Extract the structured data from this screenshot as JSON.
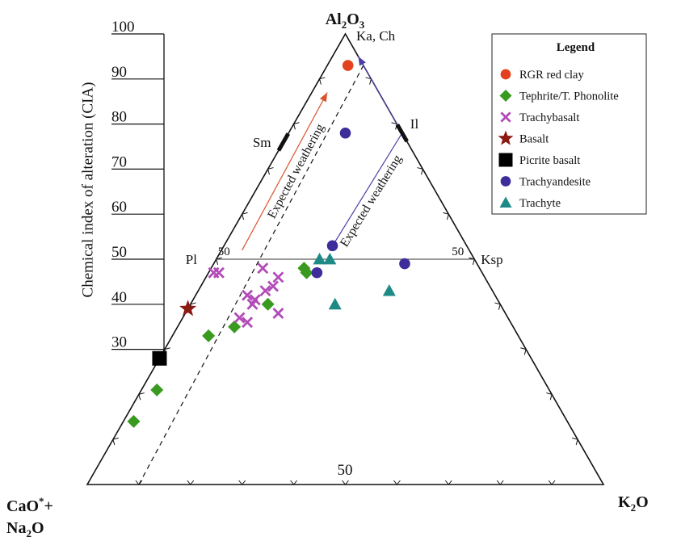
{
  "chart_data": {
    "type": "scatter",
    "subtype": "ternary",
    "title": "",
    "ylabel": "Chemical index of alteration (CIA)",
    "cia_scale": {
      "range": [
        30,
        100
      ],
      "ticks": [
        "100",
        "90",
        "80",
        "70",
        "60",
        "50",
        "40",
        "30"
      ]
    },
    "vertices": {
      "top": {
        "main": "Al",
        "sub": "2",
        "rest": "O",
        "sub2": "3"
      },
      "left_line1": {
        "main": "CaO",
        "sup": "*",
        "rest": "+"
      },
      "left_line2": {
        "main": "Na",
        "sub": "2",
        "rest": "O"
      },
      "right": {
        "main": "K",
        "sub": "2",
        "rest": "O"
      }
    },
    "mineral_labels": {
      "ka_ch": "Ka, Ch",
      "sm": "Sm",
      "il": "Il",
      "pl": "Pl",
      "ksp": "Ksp"
    },
    "fifty_labels": {
      "left_of_line": "50",
      "right_of_line": "50",
      "bottom": "50"
    },
    "reference_points": {
      "Sm": {
        "A": 76,
        "CN": 24,
        "K": 0
      },
      "Il": {
        "A": 78,
        "CN": 0,
        "K": 22
      }
    },
    "arrows": [
      {
        "label": "Expected weathering",
        "color": "#d9532b",
        "from": {
          "A": 52,
          "CN": 44,
          "K": 4
        },
        "to": {
          "A": 87,
          "CN": 10,
          "K": 3
        }
      },
      {
        "label": "Expected weathering",
        "color": "#4a3fa6",
        "path": [
          {
            "A": 52,
            "CN": 27,
            "K": 21
          },
          {
            "A": 78,
            "CN": 0,
            "K": 22
          },
          {
            "A": 95,
            "CN": 0,
            "K": 5
          }
        ]
      }
    ],
    "dashed_line": {
      "from": {
        "A": 0,
        "CN": 90,
        "K": 10
      },
      "to": {
        "A": 93,
        "CN": 0,
        "K": 7
      }
    },
    "legend": {
      "title": "Legend",
      "position": "top-right"
    },
    "series": [
      {
        "name": "RGR red clay",
        "marker": "circle",
        "color": "#e4421e",
        "points": [
          {
            "A": 93,
            "CN": 3,
            "K": 4
          }
        ]
      },
      {
        "name": "Tephrite/T. Phonolite",
        "marker": "diamond",
        "color": "#3a9a1f",
        "points": [
          {
            "A": 48,
            "CN": 34,
            "K": 18
          },
          {
            "A": 47,
            "CN": 34,
            "K": 19
          },
          {
            "A": 40,
            "CN": 45,
            "K": 15
          },
          {
            "A": 35,
            "CN": 54,
            "K": 11
          },
          {
            "A": 33,
            "CN": 60,
            "K": 7
          },
          {
            "A": 21,
            "CN": 76,
            "K": 3
          },
          {
            "A": 14,
            "CN": 84,
            "K": 2
          }
        ]
      },
      {
        "name": "Trachybasalt",
        "marker": "x",
        "color": "#b24bb8",
        "points": [
          {
            "A": 47,
            "CN": 52,
            "K": 1
          },
          {
            "A": 47,
            "CN": 51,
            "K": 2
          },
          {
            "A": 48,
            "CN": 42,
            "K": 10
          },
          {
            "A": 46,
            "CN": 40,
            "K": 14
          },
          {
            "A": 44,
            "CN": 42,
            "K": 14
          },
          {
            "A": 43,
            "CN": 44,
            "K": 13
          },
          {
            "A": 42,
            "CN": 48,
            "K": 10
          },
          {
            "A": 41,
            "CN": 47,
            "K": 12
          },
          {
            "A": 40,
            "CN": 48,
            "K": 12
          },
          {
            "A": 38,
            "CN": 44,
            "K": 18
          },
          {
            "A": 37,
            "CN": 52,
            "K": 11
          },
          {
            "A": 36,
            "CN": 51,
            "K": 13
          }
        ]
      },
      {
        "name": "Basalt",
        "marker": "star",
        "color": "#8b1a12",
        "points": [
          {
            "A": 39,
            "CN": 61,
            "K": 0
          }
        ]
      },
      {
        "name": "Picrite basalt",
        "marker": "square",
        "color": "#000000",
        "points": [
          {
            "A": 28,
            "CN": 72,
            "K": 0
          }
        ]
      },
      {
        "name": "Trachyandesite",
        "marker": "circle",
        "color": "#3d2d9a",
        "points": [
          {
            "A": 78,
            "CN": 11,
            "K": 11
          },
          {
            "A": 53,
            "CN": 26,
            "K": 21
          },
          {
            "A": 49,
            "CN": 14,
            "K": 37
          },
          {
            "A": 47,
            "CN": 32,
            "K": 21
          }
        ]
      },
      {
        "name": "Trachyte",
        "marker": "triangle",
        "color": "#1e8a86",
        "points": [
          {
            "A": 50,
            "CN": 30,
            "K": 20
          },
          {
            "A": 50,
            "CN": 28,
            "K": 22
          },
          {
            "A": 43,
            "CN": 20,
            "K": 37
          },
          {
            "A": 40,
            "CN": 32,
            "K": 28
          }
        ]
      }
    ]
  }
}
